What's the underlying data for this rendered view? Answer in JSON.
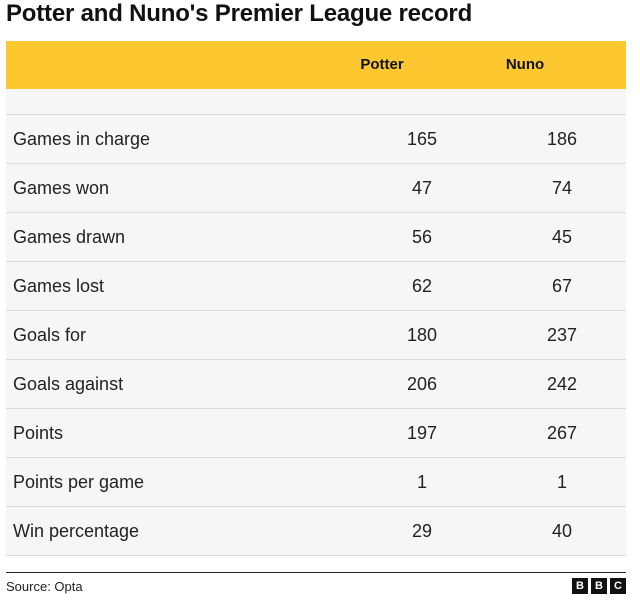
{
  "title": "Potter and Nuno's Premier League record",
  "chart_data": {
    "type": "table",
    "columns": [
      "",
      "Potter",
      "Nuno"
    ],
    "rows": [
      {
        "label": "Games in charge",
        "potter": "165",
        "nuno": "186"
      },
      {
        "label": "Games won",
        "potter": "47",
        "nuno": "74"
      },
      {
        "label": "Games drawn",
        "potter": "56",
        "nuno": "45"
      },
      {
        "label": "Games lost",
        "potter": "62",
        "nuno": "67"
      },
      {
        "label": "Goals for",
        "potter": "180",
        "nuno": "237"
      },
      {
        "label": "Goals against",
        "potter": "206",
        "nuno": "242"
      },
      {
        "label": "Points",
        "potter": "197",
        "nuno": "267"
      },
      {
        "label": "Points per game",
        "potter": "1",
        "nuno": "1"
      },
      {
        "label": "Win percentage",
        "potter": "29",
        "nuno": "40"
      }
    ]
  },
  "footer": {
    "source": "Source: Opta",
    "logo_letters": [
      "B",
      "B",
      "C"
    ]
  },
  "colors": {
    "header_bg": "#fdc82f",
    "row_bg": "#f6f6f6"
  }
}
